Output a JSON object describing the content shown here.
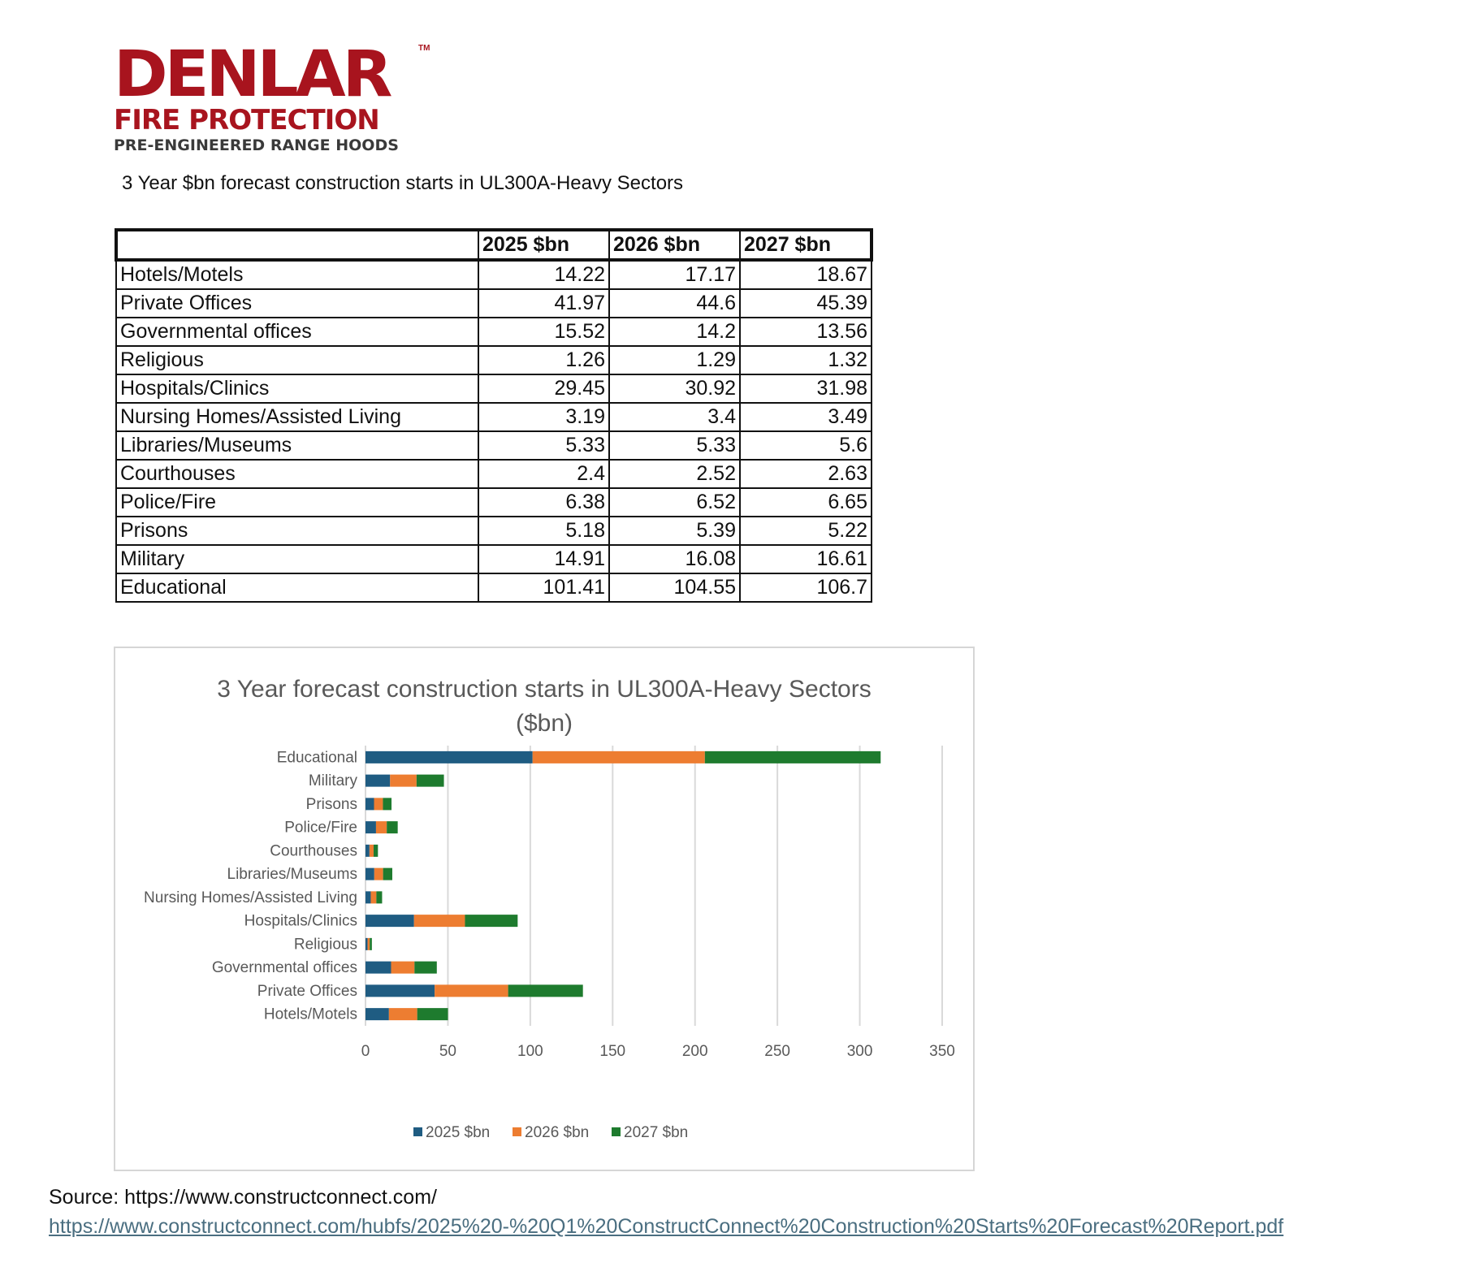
{
  "logo": {
    "main": "DENLAR",
    "tm": "TM",
    "sub": "FIRE PROTECTION",
    "tag": "PRE-ENGINEERED RANGE HOODS"
  },
  "heading": "3 Year $bn forecast construction starts in UL300A-Heavy Sectors",
  "table": {
    "headers": [
      "",
      "2025 $bn",
      "2026 $bn",
      "2027 $bn"
    ],
    "rows": [
      [
        "Hotels/Motels",
        "14.22",
        "17.17",
        "18.67"
      ],
      [
        "Private Offices",
        "41.97",
        "44.6",
        "45.39"
      ],
      [
        "Governmental offices",
        "15.52",
        "14.2",
        "13.56"
      ],
      [
        "Religious",
        "1.26",
        "1.29",
        "1.32"
      ],
      [
        "Hospitals/Clinics",
        "29.45",
        "30.92",
        "31.98"
      ],
      [
        "Nursing Homes/Assisted Living",
        "3.19",
        "3.4",
        "3.49"
      ],
      [
        "Libraries/Museums",
        "5.33",
        "5.33",
        "5.6"
      ],
      [
        "Courthouses",
        "2.4",
        "2.52",
        "2.63"
      ],
      [
        "Police/Fire",
        "6.38",
        "6.52",
        "6.65"
      ],
      [
        "Prisons",
        "5.18",
        "5.39",
        "5.22"
      ],
      [
        "Military",
        "14.91",
        "16.08",
        "16.61"
      ],
      [
        "Educational",
        "101.41",
        "104.55",
        "106.7"
      ]
    ]
  },
  "chart_data": {
    "type": "bar",
    "orientation": "horizontal",
    "stacked": true,
    "title": "3 Year forecast construction starts in UL300A-Heavy Sectors ($bn)",
    "categories": [
      "Hotels/Motels",
      "Private Offices",
      "Governmental offices",
      "Religious",
      "Hospitals/Clinics",
      "Nursing Homes/Assisted Living",
      "Libraries/Museums",
      "Courthouses",
      "Police/Fire",
      "Prisons",
      "Military",
      "Educational"
    ],
    "series": [
      {
        "name": "2025 $bn",
        "color": "#1f5c82",
        "values": [
          14.22,
          41.97,
          15.52,
          1.26,
          29.45,
          3.19,
          5.33,
          2.4,
          6.38,
          5.18,
          14.91,
          101.41
        ]
      },
      {
        "name": "2026 $bn",
        "color": "#ed7d31",
        "values": [
          17.17,
          44.6,
          14.2,
          1.29,
          30.92,
          3.4,
          5.33,
          2.52,
          6.52,
          5.39,
          16.08,
          104.55
        ]
      },
      {
        "name": "2027 $bn",
        "color": "#1e7b2e",
        "values": [
          18.67,
          45.39,
          13.56,
          1.32,
          31.98,
          3.49,
          5.6,
          2.63,
          6.65,
          5.22,
          16.61,
          106.7
        ]
      }
    ],
    "xlim": [
      0,
      350
    ],
    "xticks": [
      "0",
      "50",
      "100",
      "150",
      "200",
      "250",
      "300",
      "350"
    ],
    "grid": true,
    "legend": "bottom"
  },
  "source": {
    "label": "Source: https://www.constructconnect.com/",
    "link": "https://www.constructconnect.com/hubfs/2025%20-%20Q1%20ConstructConnect%20Construction%20Starts%20Forecast%20Report.pdf"
  }
}
